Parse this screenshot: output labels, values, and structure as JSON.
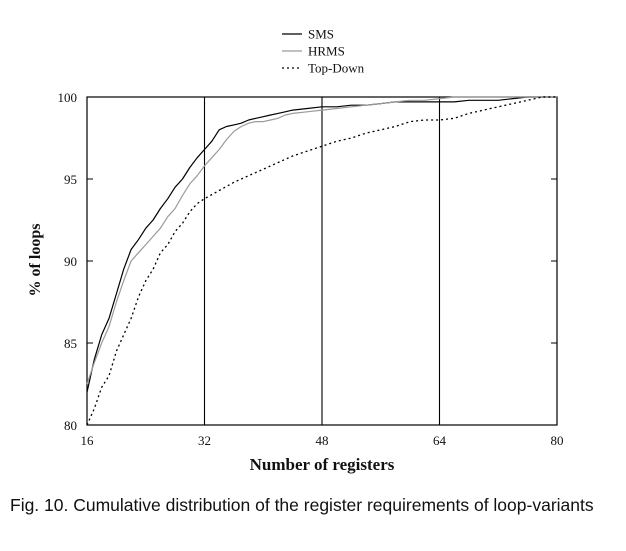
{
  "chart_data": {
    "type": "line",
    "title": "",
    "xlabel": "Number of registers",
    "ylabel": "% of loops",
    "xlim": [
      16,
      80
    ],
    "ylim": [
      80,
      100
    ],
    "x_ticks": [
      16,
      32,
      48,
      64,
      80
    ],
    "y_ticks": [
      80,
      85,
      90,
      95,
      100
    ],
    "vertical_reference_lines": [
      32,
      48,
      64
    ],
    "grid": false,
    "legend_position": "top-center",
    "series": [
      {
        "name": "SMS",
        "style": "solid",
        "color": "#000000",
        "x": [
          16,
          17,
          18,
          19,
          20,
          21,
          22,
          23,
          24,
          25,
          26,
          27,
          28,
          29,
          30,
          31,
          32,
          33,
          34,
          35,
          36,
          37,
          38,
          39,
          40,
          41,
          42,
          43,
          44,
          46,
          48,
          50,
          52,
          54,
          56,
          58,
          60,
          62,
          64,
          66,
          68,
          70,
          72,
          74,
          76,
          78,
          80
        ],
        "y": [
          82.0,
          84.0,
          85.5,
          86.5,
          88.0,
          89.5,
          90.7,
          91.3,
          92.0,
          92.5,
          93.2,
          93.8,
          94.5,
          95.0,
          95.7,
          96.3,
          96.8,
          97.3,
          98.0,
          98.2,
          98.3,
          98.4,
          98.6,
          98.7,
          98.8,
          98.9,
          99.0,
          99.1,
          99.2,
          99.3,
          99.4,
          99.4,
          99.5,
          99.5,
          99.6,
          99.7,
          99.7,
          99.7,
          99.7,
          99.7,
          99.8,
          99.8,
          99.8,
          99.9,
          100.0,
          100.0,
          100.0
        ]
      },
      {
        "name": "HRMS",
        "style": "solid",
        "color": "#9a9a9a",
        "x": [
          16,
          17,
          18,
          19,
          20,
          21,
          22,
          23,
          24,
          25,
          26,
          27,
          28,
          29,
          30,
          31,
          32,
          33,
          34,
          35,
          36,
          37,
          38,
          39,
          40,
          41,
          42,
          43,
          44,
          46,
          48,
          50,
          52,
          54,
          56,
          58,
          60,
          62,
          64,
          66,
          68,
          70,
          72,
          74,
          76,
          78,
          80
        ],
        "y": [
          82.5,
          83.8,
          85.0,
          86.0,
          87.5,
          88.8,
          90.0,
          90.5,
          91.0,
          91.5,
          92.0,
          92.7,
          93.2,
          94.0,
          94.7,
          95.2,
          95.8,
          96.3,
          96.8,
          97.4,
          97.9,
          98.2,
          98.4,
          98.5,
          98.5,
          98.6,
          98.7,
          98.9,
          99.0,
          99.1,
          99.2,
          99.3,
          99.4,
          99.5,
          99.6,
          99.7,
          99.8,
          99.8,
          99.9,
          100.0,
          100.0,
          100.0,
          100.0,
          100.0,
          100.0,
          100.0,
          100.0
        ]
      },
      {
        "name": "Top-Down",
        "style": "dotted",
        "color": "#000000",
        "x": [
          16,
          17,
          18,
          19,
          20,
          21,
          22,
          23,
          24,
          25,
          26,
          27,
          28,
          29,
          30,
          31,
          32,
          34,
          36,
          38,
          40,
          42,
          44,
          46,
          48,
          50,
          52,
          54,
          56,
          58,
          60,
          62,
          64,
          66,
          68,
          70,
          72,
          74,
          76,
          78,
          80
        ],
        "y": [
          80.0,
          81.0,
          82.3,
          83.0,
          84.5,
          85.5,
          86.5,
          87.8,
          88.8,
          89.5,
          90.5,
          91.0,
          91.8,
          92.3,
          93.0,
          93.5,
          93.8,
          94.3,
          94.8,
          95.2,
          95.6,
          96.0,
          96.4,
          96.7,
          97.0,
          97.3,
          97.5,
          97.8,
          98.0,
          98.2,
          98.5,
          98.6,
          98.6,
          98.7,
          99.0,
          99.2,
          99.4,
          99.6,
          99.8,
          100.0,
          100.0
        ]
      }
    ]
  },
  "caption": "Fig. 10. Cumulative distribution of the register requirements of loop-variants"
}
